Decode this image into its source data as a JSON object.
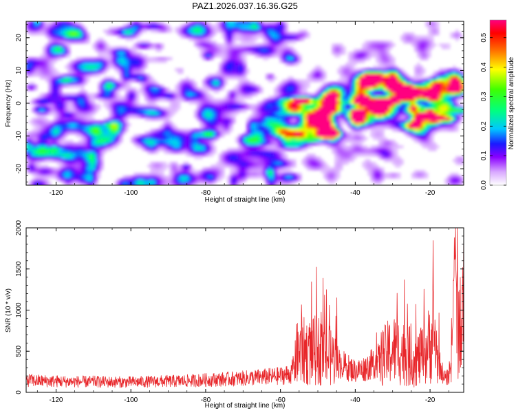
{
  "figure_title": "PAZ1.2026.037.16.36.G25",
  "colorbar": {
    "label": "Normalized spectral amplitude",
    "ticks": [
      "0.0",
      "0.1",
      "0.2",
      "0.3",
      "0.4",
      "0.5"
    ],
    "tick_values": [
      0.0,
      0.1,
      0.2,
      0.3,
      0.4,
      0.5
    ],
    "range": [
      0,
      0.56
    ]
  },
  "chart_data": [
    {
      "type": "heatmap",
      "title": "PAZ1.2026.037.16.36.G25",
      "xlabel": "Height of straight line (km)",
      "ylabel": "Frequency (Hz)",
      "xlim": [
        -128,
        -11
      ],
      "ylim": [
        -25,
        25
      ],
      "x_ticks": [
        -120,
        -100,
        -80,
        -60,
        -40,
        -20
      ],
      "x_tick_labels": [
        "-120",
        "-100",
        "-80",
        "-60",
        "-40",
        "-20"
      ],
      "y_ticks": [
        -20,
        -10,
        0,
        10,
        20
      ],
      "y_tick_labels": [
        "-20",
        "-10",
        "0",
        "10",
        "20"
      ],
      "colormap": "hsv-like (white to violet to blue to cyan to green to yellow to red)",
      "features": [
        {
          "region": "diffuse background",
          "x_range": [
            -128,
            -57
          ],
          "y_range": [
            -25,
            25
          ],
          "amplitude": 0.1
        },
        {
          "region": "signal band",
          "x_range": [
            -60,
            -44
          ],
          "freq_center": -5,
          "amplitude": 0.3
        },
        {
          "region": "signal band",
          "x_range": [
            -40,
            -26
          ],
          "freq_center": 3,
          "amplitude": 0.35
        },
        {
          "region": "signal band",
          "x_range": [
            -26,
            -11
          ],
          "freq_center": 0,
          "amplitude": 0.3
        }
      ]
    },
    {
      "type": "line",
      "xlabel": "Height of straight line (km)",
      "ylabel": "SNR (10 * v/v)",
      "xlim": [
        -128,
        -11
      ],
      "ylim": [
        0,
        2000
      ],
      "x_ticks": [
        -120,
        -100,
        -80,
        -60,
        -40,
        -20
      ],
      "x_tick_labels": [
        "-120",
        "-100",
        "-80",
        "-60",
        "-40",
        "-20"
      ],
      "y_ticks": [
        0,
        500,
        1000,
        1500,
        2000
      ],
      "y_tick_labels": [
        "0",
        "500",
        "1000",
        "1500",
        "2000"
      ],
      "series": [
        {
          "name": "SNR",
          "color": "#e8262a",
          "x": [
            -128,
            -125,
            -120,
            -115,
            -110,
            -105,
            -100,
            -95,
            -90,
            -85,
            -80,
            -75,
            -70,
            -65,
            -60,
            -57,
            -56,
            -54,
            -52,
            -50,
            -48,
            -46,
            -44,
            -42,
            -40,
            -38,
            -36,
            -34,
            -32,
            -30,
            -28,
            -26,
            -24,
            -22,
            -20,
            -19,
            -18,
            -16,
            -15,
            -14,
            -13.5,
            -13,
            -12.5,
            -12,
            -11.5,
            -11
          ],
          "values": [
            150,
            140,
            135,
            130,
            130,
            125,
            125,
            130,
            135,
            140,
            150,
            160,
            170,
            185,
            200,
            230,
            450,
            500,
            480,
            520,
            450,
            430,
            350,
            300,
            260,
            280,
            330,
            380,
            450,
            520,
            500,
            450,
            400,
            420,
            600,
            750,
            400,
            160,
            200,
            600,
            1500,
            1300,
            900,
            600,
            800,
            1100
          ]
        }
      ]
    }
  ]
}
